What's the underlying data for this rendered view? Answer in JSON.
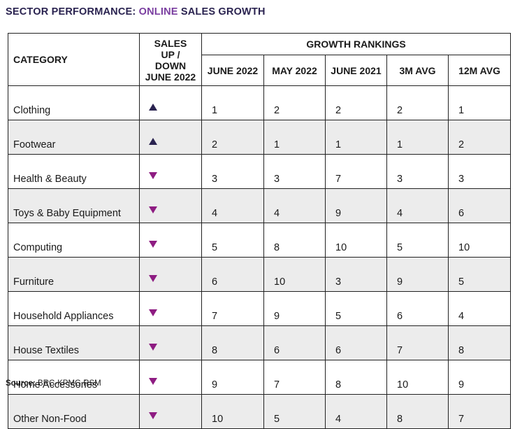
{
  "title": {
    "part1": "SECTOR PERFORMANCE: ",
    "part2": "ONLINE",
    "part3": " SALES GROWTH"
  },
  "headers": {
    "category": "CATEGORY",
    "sales_line1": "SALES",
    "sales_line2": "UP /",
    "sales_line3": "DOWN",
    "sales_line4": "JUNE 2022",
    "growth": "GROWTH RANKINGS",
    "columns": [
      "JUNE 2022",
      "MAY 2022",
      "JUNE 2021",
      "3M AVG",
      "12M AVG"
    ]
  },
  "rows": [
    {
      "category": "Clothing",
      "direction": "up",
      "ranks": [
        "1",
        "2",
        "2",
        "2",
        "1"
      ]
    },
    {
      "category": "Footwear",
      "direction": "up",
      "ranks": [
        "2",
        "1",
        "1",
        "1",
        "2"
      ]
    },
    {
      "category": "Health & Beauty",
      "direction": "down",
      "ranks": [
        "3",
        "3",
        "7",
        "3",
        "3"
      ]
    },
    {
      "category": "Toys & Baby Equipment",
      "direction": "down",
      "ranks": [
        "4",
        "4",
        "9",
        "4",
        "6"
      ]
    },
    {
      "category": "Computing",
      "direction": "down",
      "ranks": [
        "5",
        "8",
        "10",
        "5",
        "10"
      ]
    },
    {
      "category": "Furniture",
      "direction": "down",
      "ranks": [
        "6",
        "10",
        "3",
        "9",
        "5"
      ]
    },
    {
      "category": "Household Appliances",
      "direction": "down",
      "ranks": [
        "7",
        "9",
        "5",
        "6",
        "4"
      ]
    },
    {
      "category": "House Textiles",
      "direction": "down",
      "ranks": [
        "8",
        "6",
        "6",
        "7",
        "8"
      ]
    },
    {
      "category": "Home Accessories",
      "direction": "down",
      "ranks": [
        "9",
        "7",
        "8",
        "10",
        "9"
      ]
    },
    {
      "category": "Other Non-Food",
      "direction": "down",
      "ranks": [
        "10",
        "5",
        "4",
        "8",
        "7"
      ]
    }
  ],
  "colors": {
    "up_arrow": "#2a2350",
    "down_arrow": "#8e1c82"
  },
  "source": {
    "label": "Source:",
    "text": " BRC-KPMG RSM"
  }
}
